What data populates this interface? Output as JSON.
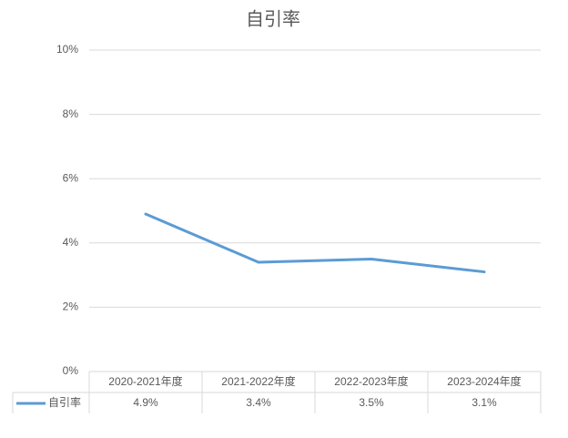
{
  "chart_data": {
    "type": "line",
    "title": "自引率",
    "categories": [
      "2020-2021年度",
      "2021-2022年度",
      "2022-2023年度",
      "2023-2024年度"
    ],
    "series": [
      {
        "name": "自引率",
        "color": "#5b9bd5",
        "values": [
          4.9,
          3.4,
          3.5,
          3.1
        ],
        "value_labels": [
          "4.9%",
          "3.4%",
          "3.5%",
          "3.1%"
        ]
      }
    ],
    "ylim": [
      0,
      10
    ],
    "yticks": [
      {
        "value": 0,
        "label": "0%"
      },
      {
        "value": 2,
        "label": "2%"
      },
      {
        "value": 4,
        "label": "4%"
      },
      {
        "value": 6,
        "label": "6%"
      },
      {
        "value": 8,
        "label": "8%"
      },
      {
        "value": 10,
        "label": "10%"
      }
    ],
    "grid": true
  }
}
